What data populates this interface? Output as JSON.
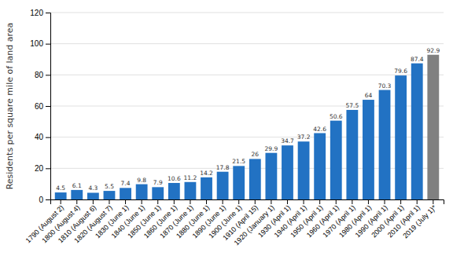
{
  "chart_data": {
    "type": "bar",
    "categories": [
      "1790 (August 2)",
      "1800 (August 4)",
      "1810 (August 6)",
      "1820 (August 7)",
      "1830 (June 1)",
      "1840 (June 1)",
      "1850 (June 1)",
      "1860 (June 1)",
      "1870 (June 1)",
      "1880 (June 1)",
      "1890 (June 1)",
      "1900 (June 1)",
      "1910 (April 15)",
      "1920 (January 1)",
      "1930 (April 1)",
      "1940 (April 1)",
      "1950 (April 1)",
      "1960 (April 1)",
      "1970 (April 1)",
      "1980 (April 1)",
      "1990 (April 1)",
      "2000 (April 1)",
      "2010 (April 1)",
      "2019 (July 1)*"
    ],
    "values": [
      4.5,
      6.1,
      4.3,
      5.5,
      7.4,
      9.8,
      7.9,
      10.6,
      11.2,
      14.2,
      17.8,
      21.5,
      26,
      29.9,
      34.7,
      37.2,
      42.6,
      50.6,
      57.5,
      64,
      70.3,
      79.6,
      87.4,
      92.9
    ],
    "colors": [
      "#2272c3",
      "#2272c3",
      "#2272c3",
      "#2272c3",
      "#2272c3",
      "#2272c3",
      "#2272c3",
      "#2272c3",
      "#2272c3",
      "#2272c3",
      "#2272c3",
      "#2272c3",
      "#2272c3",
      "#2272c3",
      "#2272c3",
      "#2272c3",
      "#2272c3",
      "#2272c3",
      "#2272c3",
      "#2272c3",
      "#2272c3",
      "#2272c3",
      "#2272c3",
      "#808080"
    ],
    "y_label": "Residents per square mile of land area",
    "ylim": [
      0,
      120
    ],
    "yticks": [
      0,
      20,
      40,
      60,
      80,
      100,
      120
    ],
    "grid": true,
    "data_labels": true
  }
}
